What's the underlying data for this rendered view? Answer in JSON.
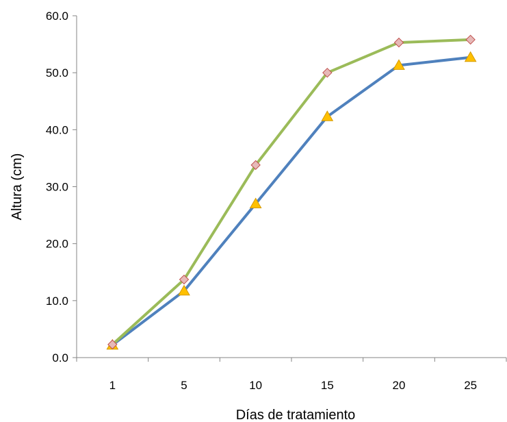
{
  "chart_data": {
    "type": "line",
    "title": "",
    "xlabel": "Días de tratamiento",
    "ylabel": "Altura (cm)",
    "categories": [
      "1",
      "5",
      "10",
      "15",
      "20",
      "25"
    ],
    "ylim": [
      0,
      60
    ],
    "yticks": [
      "0.0",
      "10.0",
      "20.0",
      "30.0",
      "40.0",
      "50.0",
      "60.0"
    ],
    "grid": false,
    "legend": "none",
    "series": [
      {
        "values": [
          2.2,
          11.7,
          27.0,
          42.3,
          51.3,
          52.7
        ],
        "color": "#4F81BD",
        "marker": "triangle",
        "marker_color": "#FFC000"
      },
      {
        "values": [
          2.3,
          13.7,
          33.8,
          50.0,
          55.3,
          55.8
        ],
        "color": "#9BBB59",
        "marker": "diamond",
        "marker_color": "#E6B9B8"
      }
    ]
  }
}
